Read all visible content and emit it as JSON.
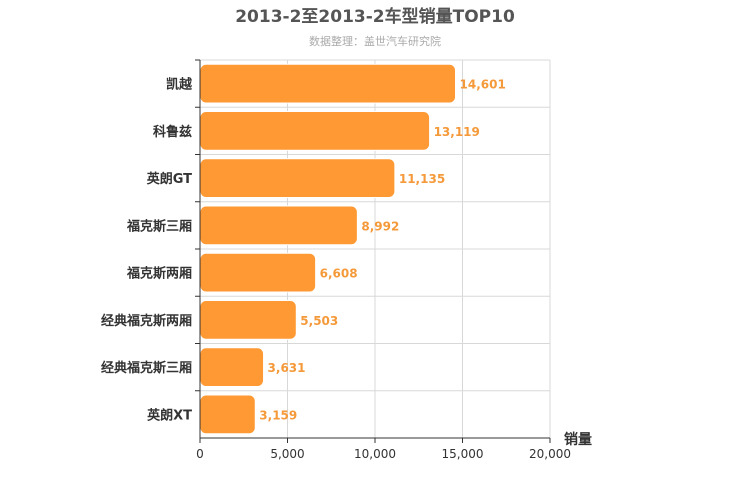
{
  "chart_data": {
    "type": "bar",
    "orientation": "horizontal",
    "title": "2013-2至2013-2车型销量TOP10",
    "subtitle": "数据整理：盖世汽车研究院",
    "xlabel": "销量",
    "ylabel": "",
    "xlim": [
      0,
      20000
    ],
    "xticks": [
      0,
      5000,
      10000,
      15000,
      20000
    ],
    "xtick_labels": [
      "0",
      "5,000",
      "10,000",
      "15,000",
      "20,000"
    ],
    "grid": true,
    "categories": [
      "凯越",
      "科鲁兹",
      "英朗GT",
      "福克斯三厢",
      "福克斯两厢",
      "经典福克斯两厢",
      "经典福克斯三厢",
      "英朗XT"
    ],
    "values": [
      14601,
      13119,
      11135,
      8992,
      6608,
      5503,
      3631,
      3159
    ],
    "value_labels": [
      "14,601",
      "13,119",
      "11,135",
      "8,992",
      "6,608",
      "5,503",
      "3,631",
      "3,159"
    ],
    "colors": {
      "bar": "#ff9933",
      "bar_stroke": "#ffffff",
      "value_label": "#f59a3a",
      "title": "#555555",
      "subtitle": "#aaaaaa",
      "axis": "#333333",
      "grid": "#d8d8d8"
    }
  }
}
